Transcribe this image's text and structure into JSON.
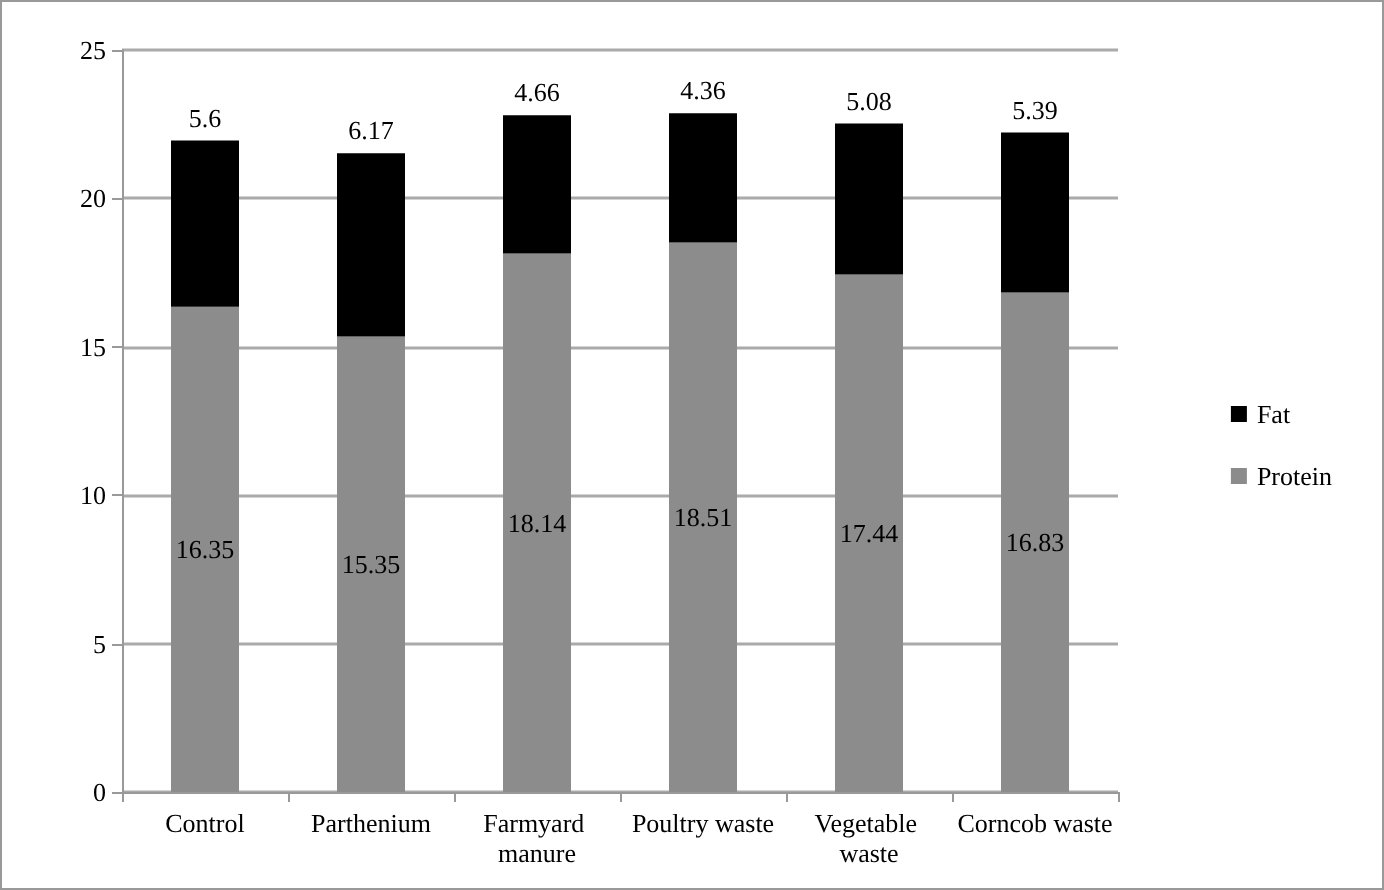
{
  "chart_data": {
    "type": "bar",
    "stacked": true,
    "categories": [
      "Control",
      "Parthenium",
      "Farmyard manure",
      "Poultry waste",
      "Vegetable waste",
      "Corncob waste"
    ],
    "series": [
      {
        "name": "Protein",
        "color": "#8c8c8c",
        "values": [
          16.35,
          15.35,
          18.14,
          18.51,
          17.44,
          16.83
        ]
      },
      {
        "name": "Fat",
        "color": "#000000",
        "values": [
          5.6,
          6.17,
          4.66,
          4.36,
          5.08,
          5.39
        ]
      }
    ],
    "ylim": [
      0,
      25
    ],
    "yticks": [
      0,
      5,
      10,
      15,
      20,
      25
    ],
    "grid": "y",
    "legend": "right",
    "data_labels": true
  }
}
